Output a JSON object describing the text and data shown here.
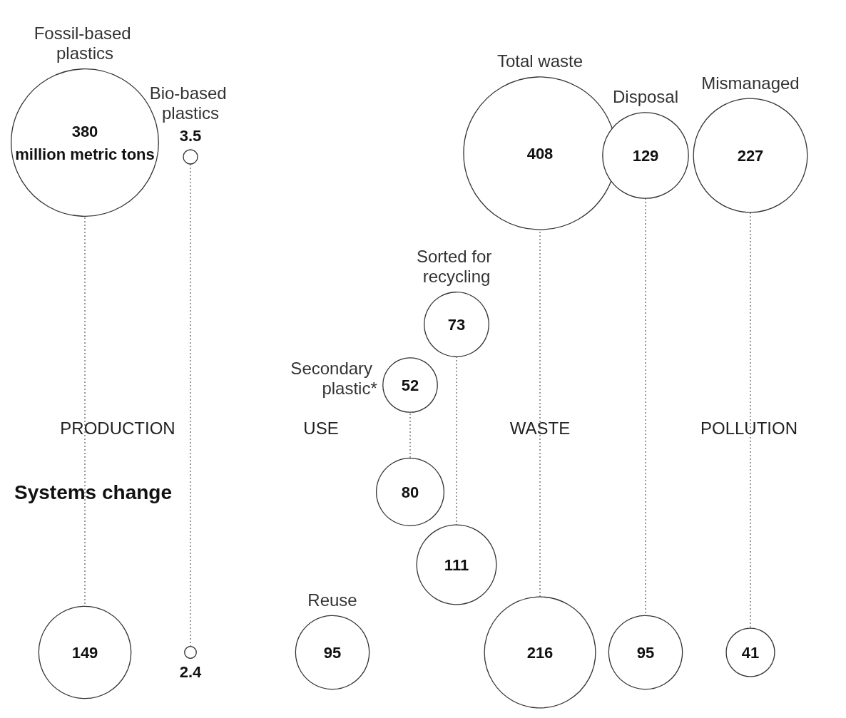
{
  "chart_data": {
    "type": "other",
    "categories": [
      "Fossil-based plastics",
      "Bio-based plastics",
      "Reuse",
      "Secondary plastic*",
      "Sorted for recycling",
      "Total waste",
      "Disposal",
      "Mismanaged"
    ],
    "series": [
      {
        "color": "#ffffff",
        "values": [
          380,
          3.5,
          null,
          52,
          73,
          408,
          129,
          227
        ]
      },
      {
        "name": "Systems change",
        "color": "#ffffff",
        "values": [
          149,
          2.4,
          95,
          80,
          111,
          216,
          95,
          41
        ]
      }
    ],
    "data_labels": true,
    "annotations": [
      "million metric tons",
      "PRODUCTION",
      "USE",
      "WASTE",
      "POLLUTION"
    ]
  }
}
